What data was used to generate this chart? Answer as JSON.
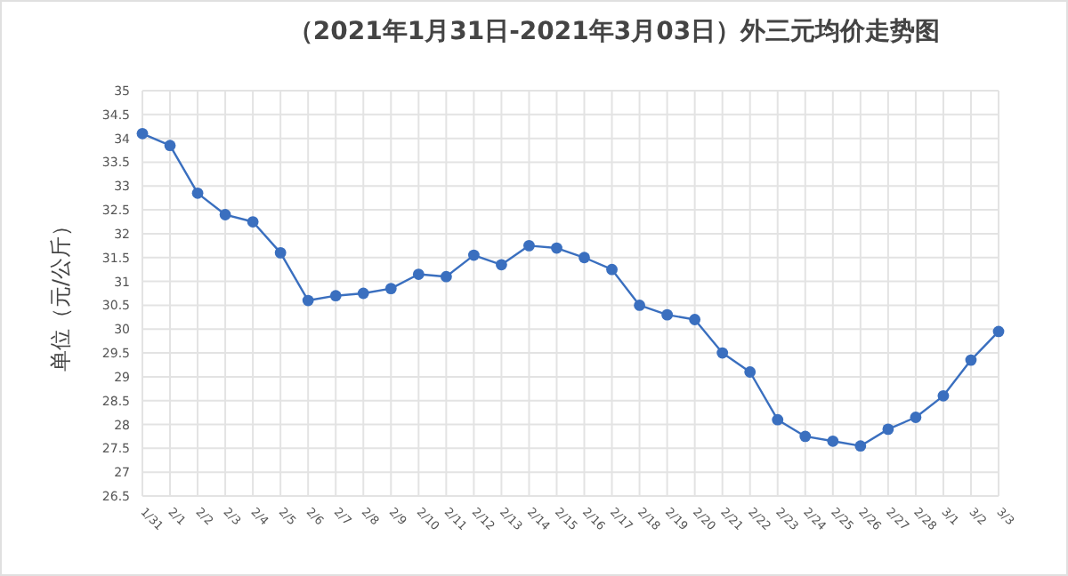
{
  "chart_data": {
    "type": "line",
    "title": "（2021年1月31日-2021年3月03日）外三元均价走势图",
    "ylabel": "单位（元/公斤）",
    "categories": [
      "1/31",
      "2/1",
      "2/2",
      "2/3",
      "2/4",
      "2/5",
      "2/6",
      "2/7",
      "2/8",
      "2/9",
      "2/10",
      "2/11",
      "2/12",
      "2/13",
      "2/14",
      "2/15",
      "2/16",
      "2/17",
      "2/18",
      "2/19",
      "2/20",
      "2/21",
      "2/22",
      "2/23",
      "2/24",
      "2/25",
      "2/26",
      "2/27",
      "2/28",
      "3/1",
      "3/2",
      "3/3"
    ],
    "series": [
      {
        "color": "#3a6fbf",
        "values": [
          34.1,
          33.85,
          32.85,
          32.4,
          32.25,
          31.6,
          30.6,
          30.7,
          30.75,
          30.85,
          31.15,
          31.1,
          31.55,
          31.35,
          31.75,
          31.7,
          31.5,
          31.25,
          30.5,
          30.3,
          30.2,
          29.5,
          29.1,
          28.1,
          27.75,
          27.65,
          27.55,
          27.9,
          28.15,
          28.6,
          29.35,
          29.95
        ]
      }
    ],
    "ylim": [
      26.5,
      35
    ],
    "yticks": [
      26.5,
      27,
      27.5,
      28,
      28.5,
      29,
      29.5,
      30,
      30.5,
      31,
      31.5,
      32,
      32.5,
      33,
      33.5,
      34,
      34.5,
      35
    ],
    "grid": true,
    "marker": "circle",
    "line_style": "solid"
  }
}
